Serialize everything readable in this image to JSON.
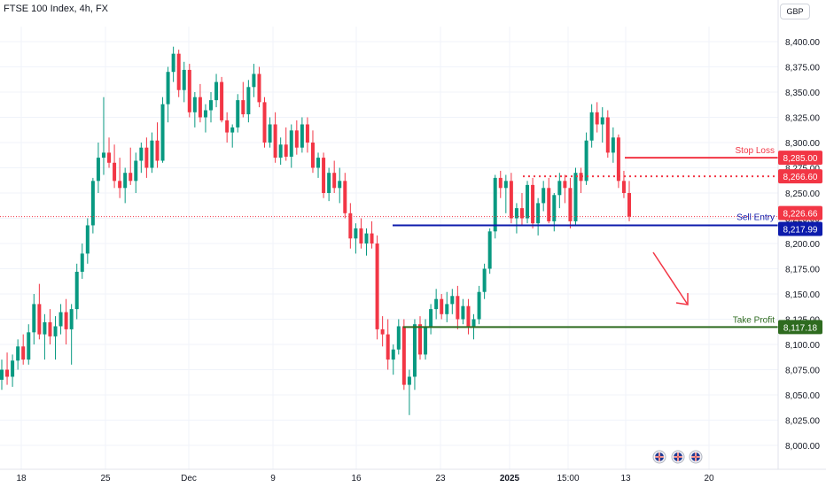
{
  "header": {
    "symbol_title": "FTSE 100 Index, 4h, FX",
    "currency": "GBP"
  },
  "price_axis": {
    "ticks": [
      "8,400.00",
      "8,375.00",
      "8,350.00",
      "8,325.00",
      "8,300.00",
      "8,275.00",
      "8,250.00",
      "8,225.00",
      "8,200.00",
      "8,175.00",
      "8,150.00",
      "8,125.00",
      "8,100.00",
      "8,075.00",
      "8,050.00",
      "8,025.00",
      "8,000.00"
    ]
  },
  "time_axis": {
    "ticks": [
      {
        "label": "18",
        "bold": false
      },
      {
        "label": "25",
        "bold": false
      },
      {
        "label": "Dec",
        "bold": false
      },
      {
        "label": "9",
        "bold": false
      },
      {
        "label": "16",
        "bold": false
      },
      {
        "label": "23",
        "bold": false
      },
      {
        "label": "2025",
        "bold": true
      },
      {
        "label": "15:00",
        "bold": false
      },
      {
        "label": "13",
        "bold": false
      },
      {
        "label": "20",
        "bold": false
      }
    ]
  },
  "levels": {
    "stop_loss": {
      "label": "Stop Loss",
      "price": "8,285.00",
      "value": 8285.0,
      "color": "#f23645"
    },
    "current": {
      "price": "8,266.60",
      "value": 8266.6,
      "color": "#f23645"
    },
    "last_price": {
      "price": "8,226.66",
      "value": 8226.66,
      "color": "#f23645"
    },
    "sell_entry": {
      "label": "Sell Entry",
      "price": "8,217.99",
      "value": 8217.99,
      "color": "#0d1bac"
    },
    "take_profit": {
      "label": "Take Profit",
      "price": "8,117.18",
      "value": 8117.18,
      "color": "#2e6b1f"
    }
  },
  "colors": {
    "up": "#089981",
    "down": "#f23645",
    "grid": "#f0f3fa",
    "axis_text": "#131722",
    "arrow": "#f23645"
  },
  "event_icons": [
    "uk-flag-icon",
    "uk-flag-icon",
    "uk-flag-icon"
  ],
  "chart_data": {
    "type": "candlestick",
    "title": "FTSE 100 Index, 4h, FX",
    "ylim": [
      7995,
      8425
    ],
    "x_ticks": [
      "18",
      "25",
      "Dec",
      "9",
      "16",
      "23",
      "2025",
      "15:00",
      "13",
      "20"
    ],
    "series": [
      {
        "values": [
          [
            8065,
            8085,
            8055,
            8075
          ],
          [
            8075,
            8092,
            8060,
            8068
          ],
          [
            8068,
            8090,
            8058,
            8084
          ],
          [
            8084,
            8105,
            8075,
            8098
          ],
          [
            8098,
            8110,
            8080,
            8085
          ],
          [
            8085,
            8120,
            8080,
            8112
          ],
          [
            8112,
            8150,
            8100,
            8140
          ],
          [
            8140,
            8160,
            8105,
            8110
          ],
          [
            8110,
            8130,
            8085,
            8122
          ],
          [
            8122,
            8135,
            8100,
            8108
          ],
          [
            8108,
            8128,
            8085,
            8118
          ],
          [
            8118,
            8140,
            8110,
            8132
          ],
          [
            8132,
            8145,
            8100,
            8115
          ],
          [
            8115,
            8140,
            8080,
            8135
          ],
          [
            8135,
            8180,
            8125,
            8172
          ],
          [
            8172,
            8200,
            8165,
            8190
          ],
          [
            8190,
            8225,
            8180,
            8218
          ],
          [
            8218,
            8265,
            8210,
            8262
          ],
          [
            8262,
            8300,
            8250,
            8285
          ],
          [
            8285,
            8345,
            8268,
            8290
          ],
          [
            8290,
            8305,
            8275,
            8280
          ],
          [
            8280,
            8298,
            8255,
            8262
          ],
          [
            8262,
            8285,
            8245,
            8255
          ],
          [
            8255,
            8275,
            8240,
            8270
          ],
          [
            8270,
            8295,
            8258,
            8262
          ],
          [
            8262,
            8290,
            8250,
            8282
          ],
          [
            8282,
            8300,
            8270,
            8295
          ],
          [
            8295,
            8305,
            8265,
            8275
          ],
          [
            8275,
            8310,
            8270,
            8302
          ],
          [
            8302,
            8320,
            8275,
            8282
          ],
          [
            8282,
            8345,
            8280,
            8338
          ],
          [
            8338,
            8375,
            8320,
            8370
          ],
          [
            8370,
            8395,
            8360,
            8388
          ],
          [
            8388,
            8392,
            8345,
            8352
          ],
          [
            8352,
            8380,
            8340,
            8372
          ],
          [
            8372,
            8378,
            8325,
            8330
          ],
          [
            8330,
            8350,
            8315,
            8345
          ],
          [
            8345,
            8358,
            8320,
            8325
          ],
          [
            8325,
            8338,
            8310,
            8332
          ],
          [
            8332,
            8350,
            8320,
            8342
          ],
          [
            8342,
            8368,
            8335,
            8360
          ],
          [
            8360,
            8365,
            8320,
            8322
          ],
          [
            8322,
            8330,
            8300,
            8310
          ],
          [
            8310,
            8318,
            8295,
            8315
          ],
          [
            8315,
            8348,
            8310,
            8342
          ],
          [
            8342,
            8360,
            8325,
            8328
          ],
          [
            8328,
            8362,
            8320,
            8355
          ],
          [
            8355,
            8378,
            8345,
            8368
          ],
          [
            8368,
            8375,
            8335,
            8340
          ],
          [
            8340,
            8345,
            8295,
            8300
          ],
          [
            8300,
            8325,
            8295,
            8318
          ],
          [
            8318,
            8330,
            8280,
            8285
          ],
          [
            8285,
            8305,
            8278,
            8298
          ],
          [
            8298,
            8315,
            8282,
            8286
          ],
          [
            8286,
            8318,
            8275,
            8312
          ],
          [
            8312,
            8322,
            8288,
            8295
          ],
          [
            8295,
            8325,
            8290,
            8318
          ],
          [
            8318,
            8325,
            8290,
            8300
          ],
          [
            8300,
            8312,
            8270,
            8275
          ],
          [
            8275,
            8290,
            8265,
            8285
          ],
          [
            8285,
            8290,
            8245,
            8250
          ],
          [
            8250,
            8275,
            8242,
            8270
          ],
          [
            8270,
            8282,
            8250,
            8255
          ],
          [
            8255,
            8275,
            8240,
            8262
          ],
          [
            8262,
            8270,
            8225,
            8230
          ],
          [
            8230,
            8240,
            8195,
            8205
          ],
          [
            8205,
            8220,
            8190,
            8215
          ],
          [
            8215,
            8225,
            8195,
            8200
          ],
          [
            8200,
            8215,
            8188,
            8210
          ],
          [
            8210,
            8222,
            8195,
            8200
          ],
          [
            8200,
            8208,
            8105,
            8115
          ],
          [
            8115,
            8128,
            8098,
            8110
          ],
          [
            8110,
            8125,
            8075,
            8085
          ],
          [
            8085,
            8100,
            8070,
            8095
          ],
          [
            8095,
            8125,
            8090,
            8118
          ],
          [
            8118,
            8125,
            8055,
            8060
          ],
          [
            8060,
            8075,
            8030,
            8068
          ],
          [
            8068,
            8125,
            8055,
            8120
          ],
          [
            8120,
            8128,
            8085,
            8090
          ],
          [
            8090,
            8125,
            8085,
            8118
          ],
          [
            8118,
            8140,
            8110,
            8135
          ],
          [
            8135,
            8155,
            8125,
            8145
          ],
          [
            8145,
            8150,
            8125,
            8130
          ],
          [
            8130,
            8152,
            8122,
            8140
          ],
          [
            8140,
            8155,
            8130,
            8148
          ],
          [
            8148,
            8158,
            8115,
            8125
          ],
          [
            8125,
            8145,
            8120,
            8138
          ],
          [
            8138,
            8145,
            8110,
            8118
          ],
          [
            8118,
            8130,
            8105,
            8125
          ],
          [
            8125,
            8158,
            8120,
            8152
          ],
          [
            8152,
            8180,
            8145,
            8175
          ],
          [
            8175,
            8215,
            8170,
            8212
          ],
          [
            8212,
            8268,
            8205,
            8265
          ],
          [
            8265,
            8272,
            8245,
            8255
          ],
          [
            8255,
            8268,
            8230,
            8262
          ],
          [
            8262,
            8270,
            8220,
            8225
          ],
          [
            8225,
            8240,
            8210,
            8235
          ],
          [
            8235,
            8250,
            8218,
            8225
          ],
          [
            8225,
            8262,
            8220,
            8258
          ],
          [
            8258,
            8265,
            8215,
            8220
          ],
          [
            8220,
            8245,
            8208,
            8240
          ],
          [
            8240,
            8262,
            8232,
            8255
          ],
          [
            8255,
            8265,
            8220,
            8222
          ],
          [
            8222,
            8250,
            8212,
            8248
          ],
          [
            8248,
            8270,
            8235,
            8262
          ],
          [
            8262,
            8268,
            8240,
            8255
          ],
          [
            8255,
            8265,
            8215,
            8222
          ],
          [
            8222,
            8275,
            8218,
            8270
          ],
          [
            8270,
            8275,
            8250,
            8262
          ],
          [
            8262,
            8310,
            8258,
            8302
          ],
          [
            8302,
            8338,
            8295,
            8330
          ],
          [
            8330,
            8340,
            8310,
            8318
          ],
          [
            8318,
            8335,
            8300,
            8325
          ],
          [
            8325,
            8332,
            8285,
            8290
          ],
          [
            8290,
            8315,
            8280,
            8305
          ],
          [
            8305,
            8308,
            8255,
            8262
          ],
          [
            8262,
            8272,
            8245,
            8250
          ],
          [
            8250,
            8262,
            8222,
            8226.66
          ]
        ]
      }
    ],
    "annotations": [
      {
        "text": "Stop Loss",
        "y": 8285.0
      },
      {
        "text": "Sell Entry",
        "y": 8217.99
      },
      {
        "text": "Take Profit",
        "y": 8117.18
      }
    ]
  }
}
